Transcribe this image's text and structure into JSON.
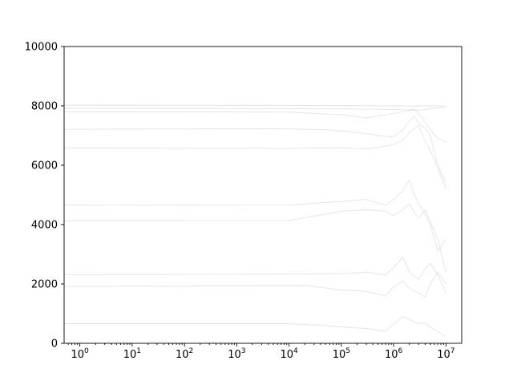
{
  "chart_data": {
    "type": "line",
    "title": "",
    "xlabel": "",
    "ylabel": "",
    "xscale": "log",
    "xlim": [
      0.5,
      20000000
    ],
    "ylim": [
      0,
      10000
    ],
    "legend": "none",
    "grid": false,
    "line_color": "#808080",
    "x_ticks": [
      {
        "value": 1,
        "base": "10",
        "exp": "0"
      },
      {
        "value": 10,
        "base": "10",
        "exp": "1"
      },
      {
        "value": 100,
        "base": "10",
        "exp": "2"
      },
      {
        "value": 1000,
        "base": "10",
        "exp": "3"
      },
      {
        "value": 10000,
        "base": "10",
        "exp": "4"
      },
      {
        "value": 100000,
        "base": "10",
        "exp": "5"
      },
      {
        "value": 1000000,
        "base": "10",
        "exp": "6"
      },
      {
        "value": 10000000,
        "base": "10",
        "exp": "7"
      }
    ],
    "y_ticks": [
      {
        "value": 0,
        "label": "0"
      },
      {
        "value": 2000,
        "label": "2000"
      },
      {
        "value": 4000,
        "label": "4000"
      },
      {
        "value": 6000,
        "label": "6000"
      },
      {
        "value": 8000,
        "label": "8000"
      },
      {
        "value": 10000,
        "label": "10000"
      }
    ],
    "series": [
      {
        "values": [
          [
            0.5,
            8020
          ],
          [
            1000,
            8020
          ],
          [
            100000,
            8010
          ],
          [
            1000000,
            8000
          ],
          [
            3000000,
            7990
          ],
          [
            5000000,
            8010
          ],
          [
            10000000,
            7990
          ]
        ]
      },
      {
        "values": [
          [
            0.5,
            7920
          ],
          [
            1000,
            7910
          ],
          [
            100000,
            7900
          ],
          [
            1000000,
            7880
          ],
          [
            3000000,
            7850
          ],
          [
            5000000,
            7900
          ],
          [
            8000000,
            7950
          ],
          [
            10000000,
            7930
          ]
        ]
      },
      {
        "values": [
          [
            0.5,
            7800
          ],
          [
            10000,
            7790
          ],
          [
            100000,
            7700
          ],
          [
            300000,
            7600
          ],
          [
            700000,
            7700
          ],
          [
            1500000,
            7800
          ],
          [
            2500000,
            7900
          ],
          [
            3500000,
            7600
          ],
          [
            5000000,
            7200
          ],
          [
            7000000,
            6900
          ],
          [
            10000000,
            6800
          ]
        ]
      },
      {
        "values": [
          [
            0.5,
            7210
          ],
          [
            5000,
            7230
          ],
          [
            50000,
            7200
          ],
          [
            200000,
            7100
          ],
          [
            500000,
            7000
          ],
          [
            1000000,
            6950
          ],
          [
            1500000,
            7200
          ],
          [
            2000000,
            7500
          ],
          [
            2500000,
            7650
          ],
          [
            3000000,
            7400
          ],
          [
            4000000,
            7250
          ],
          [
            5000000,
            7000
          ],
          [
            7000000,
            6000
          ],
          [
            10000000,
            5400
          ]
        ]
      },
      {
        "values": [
          [
            0.5,
            6580
          ],
          [
            10000,
            6570
          ],
          [
            100000,
            6590
          ],
          [
            300000,
            6550
          ],
          [
            500000,
            6600
          ],
          [
            1000000,
            6700
          ],
          [
            1500000,
            6850
          ],
          [
            2000000,
            7100
          ],
          [
            3000000,
            7350
          ],
          [
            4000000,
            6800
          ],
          [
            5000000,
            6500
          ],
          [
            7000000,
            5900
          ],
          [
            10000000,
            5200
          ]
        ]
      },
      {
        "values": [
          [
            0.5,
            4650
          ],
          [
            10000,
            4660
          ],
          [
            100000,
            4780
          ],
          [
            300000,
            4850
          ],
          [
            700000,
            4650
          ],
          [
            1000000,
            4850
          ],
          [
            1500000,
            5150
          ],
          [
            2000000,
            5500
          ],
          [
            2500000,
            5000
          ],
          [
            3000000,
            4700
          ],
          [
            4000000,
            4350
          ],
          [
            5000000,
            4000
          ],
          [
            7000000,
            3100
          ],
          [
            10000000,
            3500
          ]
        ]
      },
      {
        "values": [
          [
            0.5,
            4130
          ],
          [
            10000,
            4140
          ],
          [
            50000,
            4350
          ],
          [
            100000,
            4450
          ],
          [
            300000,
            4500
          ],
          [
            700000,
            4450
          ],
          [
            1000000,
            4300
          ],
          [
            1500000,
            4500
          ],
          [
            2000000,
            4700
          ],
          [
            2500000,
            4400
          ],
          [
            3000000,
            4200
          ],
          [
            4000000,
            4500
          ],
          [
            5000000,
            4100
          ],
          [
            7000000,
            3500
          ],
          [
            10000000,
            2400
          ]
        ]
      },
      {
        "values": [
          [
            0.5,
            2310
          ],
          [
            10000,
            2330
          ],
          [
            100000,
            2340
          ],
          [
            300000,
            2400
          ],
          [
            700000,
            2300
          ],
          [
            1000000,
            2550
          ],
          [
            1500000,
            2900
          ],
          [
            2000000,
            2400
          ],
          [
            3000000,
            2150
          ],
          [
            4000000,
            2500
          ],
          [
            5000000,
            2700
          ],
          [
            7000000,
            2300
          ],
          [
            10000000,
            1700
          ]
        ]
      },
      {
        "values": [
          [
            0.5,
            1920
          ],
          [
            5000,
            1930
          ],
          [
            20000,
            1950
          ],
          [
            100000,
            1800
          ],
          [
            300000,
            1750
          ],
          [
            700000,
            1600
          ],
          [
            1000000,
            1900
          ],
          [
            1500000,
            2100
          ],
          [
            2000000,
            1850
          ],
          [
            3000000,
            1700
          ],
          [
            4000000,
            1550
          ],
          [
            5000000,
            2000
          ],
          [
            7000000,
            2400
          ],
          [
            10000000,
            2000
          ]
        ]
      },
      {
        "values": [
          [
            0.5,
            660
          ],
          [
            10000,
            660
          ],
          [
            50000,
            600
          ],
          [
            100000,
            550
          ],
          [
            300000,
            500
          ],
          [
            700000,
            400
          ],
          [
            1000000,
            650
          ],
          [
            1500000,
            900
          ],
          [
            2000000,
            800
          ],
          [
            3000000,
            650
          ],
          [
            4000000,
            700
          ],
          [
            5000000,
            550
          ],
          [
            7000000,
            400
          ],
          [
            10000000,
            220
          ]
        ]
      }
    ]
  }
}
